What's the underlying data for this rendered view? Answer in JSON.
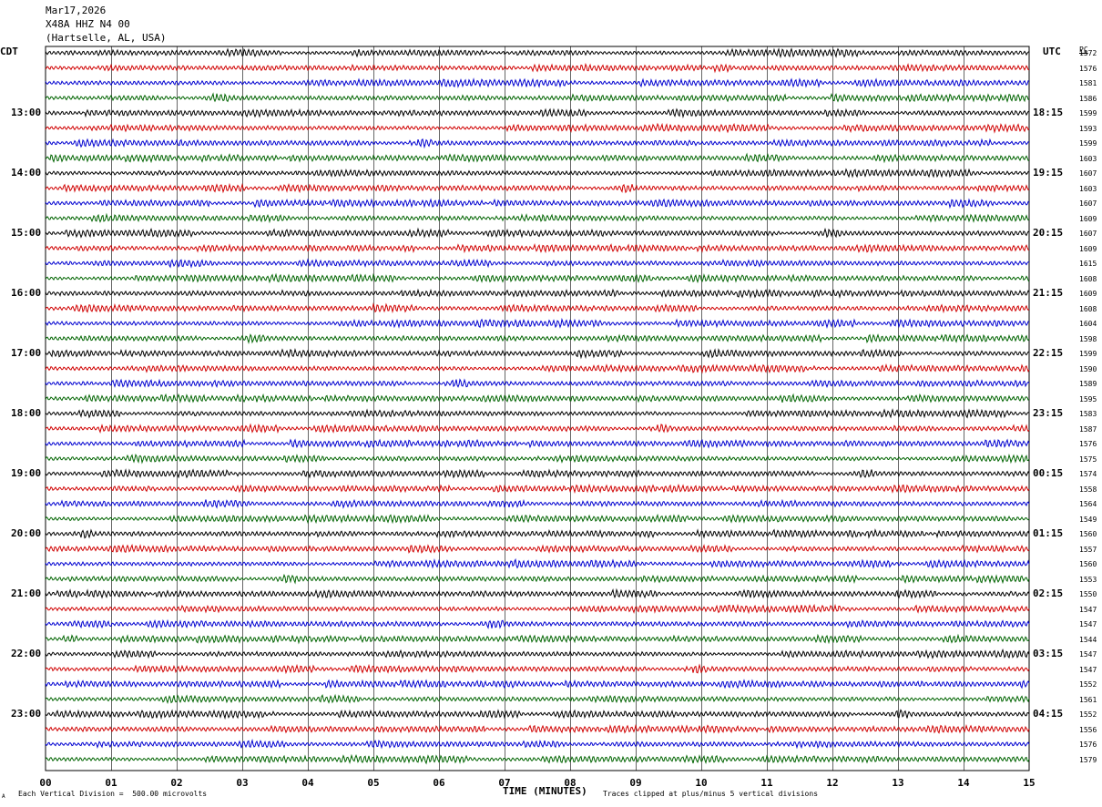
{
  "header": {
    "date": "Mar17,2026",
    "station": "X48A HHZ N4 00",
    "location": "(Hartselle, AL, USA)"
  },
  "left_tz": "CDT",
  "right_tz": "UTC",
  "pc_label": "PC",
  "footer": {
    "scale": "Each Vertical Division =  500.00 microvolts",
    "clip": "Traces clipped at plus/minus 5 vertical divisions",
    "corner_mark": "A"
  },
  "colors": {
    "trace_cycle": [
      "#000000",
      "#d00000",
      "#0000d0",
      "#006400"
    ],
    "grid": "#000000"
  },
  "chart_data": {
    "type": "line",
    "title": "",
    "xlabel": "TIME (MINUTES)",
    "ylabel": "",
    "xlim": [
      0,
      15
    ],
    "x_ticks": [
      "00",
      "01",
      "02",
      "03",
      "04",
      "05",
      "06",
      "07",
      "08",
      "09",
      "10",
      "11",
      "12",
      "13",
      "14",
      "15"
    ],
    "rows_per_hour": 4,
    "left_hour_labels": [
      "13:00",
      "14:00",
      "15:00",
      "16:00",
      "17:00",
      "18:00",
      "19:00",
      "20:00",
      "21:00",
      "22:00",
      "23:00"
    ],
    "right_hour_labels": [
      "18:15",
      "19:15",
      "20:15",
      "21:15",
      "22:15",
      "23:15",
      "00:15",
      "01:15",
      "02:15",
      "03:15",
      "04:15"
    ],
    "first_labeled_row": 4,
    "row_counts": [
      1572,
      1576,
      1581,
      1586,
      1599,
      1593,
      1599,
      1603,
      1607,
      1603,
      1607,
      1609,
      1607,
      1609,
      1615,
      1608,
      1609,
      1608,
      1604,
      1598,
      1599,
      1590,
      1589,
      1595,
      1583,
      1587,
      1576,
      1575,
      1574,
      1558,
      1564,
      1549,
      1560,
      1557,
      1560,
      1553,
      1550,
      1547,
      1547,
      1544,
      1547,
      1547,
      1552,
      1561,
      1552,
      1556,
      1576,
      1579
    ]
  }
}
